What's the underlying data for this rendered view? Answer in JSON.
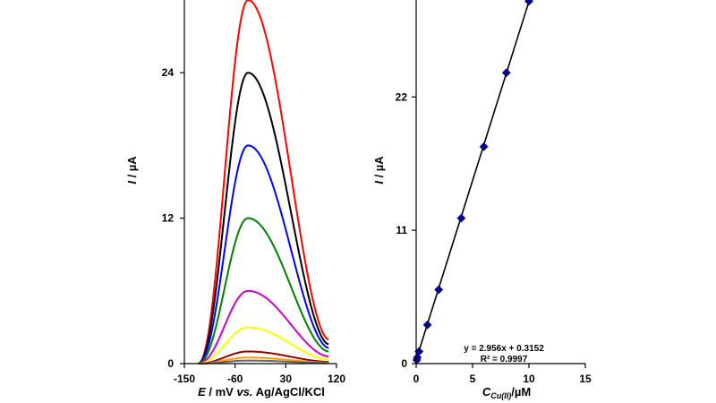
{
  "chart_data": [
    {
      "type": "line",
      "ylabel_italic": "I",
      "ylabel_rest": " / µA",
      "xlabel_italic": "E",
      "xlabel_mid": " / mV ",
      "xlabel_vs": "vs.",
      "xlabel_rest": " Ag/AgCl/KCl",
      "xlim": [
        -150,
        120
      ],
      "ylim": [
        0,
        30
      ],
      "xticks": [
        -150,
        -60,
        30,
        120
      ],
      "yticks": [
        0,
        12,
        24
      ],
      "peak_x": -37,
      "x_range": [
        -126,
        106
      ],
      "series": [
        {
          "color": "#ff0000",
          "peak": 30.0,
          "end": 2.0
        },
        {
          "color": "#000000",
          "peak": 24.0,
          "end": 1.6
        },
        {
          "color": "#0000ff",
          "peak": 18.0,
          "end": 1.3
        },
        {
          "color": "#008000",
          "peak": 12.0,
          "end": 1.0
        },
        {
          "color": "#cc00cc",
          "peak": 6.0,
          "end": 0.6
        },
        {
          "color": "#ffff00",
          "peak": 3.0,
          "end": 0.35
        },
        {
          "color": "#990000",
          "peak": 1.0,
          "end": 0.15
        },
        {
          "color": "#ff9900",
          "peak": 0.5,
          "end": 0.08
        },
        {
          "color": "#666666",
          "peak": 0.25,
          "end": 0.05
        }
      ]
    },
    {
      "type": "scatter",
      "ylabel_italic": "I",
      "ylabel_rest": " / µA",
      "xlabel_main": "C",
      "xlabel_sub": "Cu(II)",
      "xlabel_rest": "/µM",
      "xlim": [
        0,
        15
      ],
      "ylim": [
        0,
        30
      ],
      "xticks": [
        0,
        5,
        10,
        15
      ],
      "yticks": [
        0,
        11,
        22
      ],
      "x": [
        0.05,
        0.1,
        0.25,
        1,
        2,
        4,
        6,
        8,
        10
      ],
      "y": [
        0.3,
        0.5,
        1.0,
        3.2,
        6.1,
        12.0,
        17.9,
        24.0,
        29.9
      ],
      "fit": {
        "slope": 2.956,
        "intercept": 0.3152
      },
      "equation": "y = 2.956x + 0.3152",
      "r2": "R² = 0.9997",
      "marker_color": "#00008b"
    }
  ]
}
